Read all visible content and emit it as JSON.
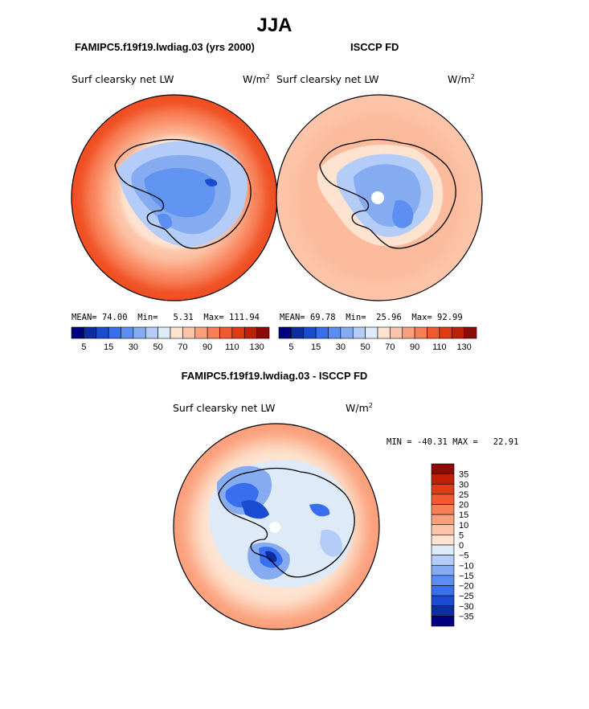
{
  "season_title": "JJA",
  "panels": [
    {
      "case_label": "FAMIPC5.f19f19.lwdiag.03 (yrs 2000)",
      "variable": "Surf clearsky net LW",
      "units": "W/m",
      "units_exp": "2",
      "stats": {
        "mean_label": "MEAN=",
        "mean": "74.00",
        "min_label": "Min=",
        "min": "5.31",
        "max_label": "Max=",
        "max": "111.94"
      }
    },
    {
      "case_label": "ISCCP FD",
      "variable": "Surf clearsky net LW",
      "units": "W/m",
      "units_exp": "2",
      "stats": {
        "mean_label": "MEAN=",
        "mean": "69.78",
        "min_label": "Min=",
        "min": "25.96",
        "max_label": "Max=",
        "max": "92.99"
      }
    }
  ],
  "abs_colorbar": {
    "colors": [
      "#000080",
      "#0d2ea0",
      "#1a4bd0",
      "#3a6ef0",
      "#5b8ef0",
      "#85acf0",
      "#b4cdf8",
      "#dfeaf8",
      "#fde3d0",
      "#fcc4a8",
      "#fba07c",
      "#f77e56",
      "#f2592e",
      "#e23a14",
      "#c01f0a",
      "#8e0a06"
    ],
    "tick_labels": [
      "5",
      "15",
      "30",
      "50",
      "70",
      "90",
      "110",
      "130"
    ]
  },
  "difference": {
    "title": "FAMIPC5.f19f19.lwdiag.03 - ISCCP FD",
    "variable": "Surf clearsky net LW",
    "units": "W/m",
    "units_exp": "2",
    "min_label": "MIN =",
    "min": "-40.31",
    "max_label": "MAX =",
    "max": "22.91",
    "colorbar": {
      "colors": [
        "#000080",
        "#0d2ea0",
        "#1a4bd0",
        "#3a6ef0",
        "#5b8ef0",
        "#85acf0",
        "#b4cdf8",
        "#dfeaf8",
        "#fde3d0",
        "#fcc4a8",
        "#fba07c",
        "#f77e56",
        "#f2592e",
        "#e23a14",
        "#c01f0a",
        "#8e0a06"
      ],
      "tick_labels": [
        "35",
        "30",
        "25",
        "20",
        "15",
        "10",
        "5",
        "0",
        "−5",
        "−10",
        "−15",
        "−20",
        "−25",
        "−30",
        "−35"
      ]
    }
  }
}
